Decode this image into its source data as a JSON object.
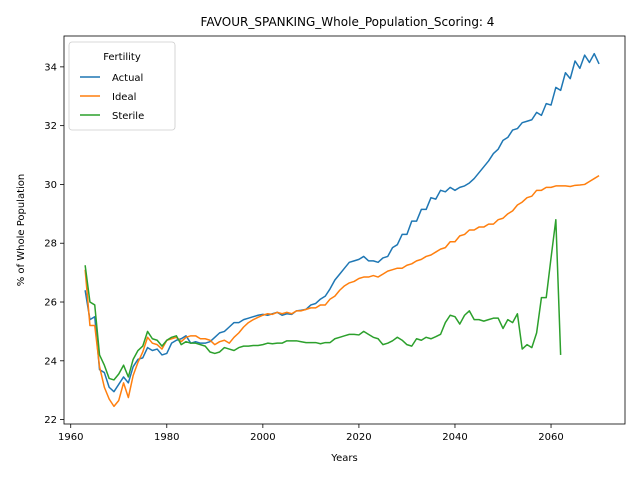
{
  "chart_data": {
    "type": "line",
    "title": "FAVOUR_SPANKING_Whole_Population_Scoring: 4",
    "xlabel": "Years",
    "ylabel": "% of Whole Population",
    "xlim": [
      1958.6,
      2075.4
    ],
    "ylim": [
      21.85,
      35.05
    ],
    "xticks": [
      1960,
      1980,
      2000,
      2020,
      2040,
      2060
    ],
    "yticks": [
      22,
      24,
      26,
      28,
      30,
      32,
      34
    ],
    "grid": false,
    "legend": {
      "title": "Fertility",
      "placement": "top-left"
    },
    "series": [
      {
        "name": "Actual",
        "color": "#1f77b4",
        "x": [
          1963,
          1964,
          1965,
          1966,
          1967,
          1968,
          1969,
          1970,
          1971,
          1972,
          1973,
          1974,
          1975,
          1976,
          1977,
          1978,
          1979,
          1980,
          1981,
          1982,
          1983,
          1984,
          1985,
          1986,
          1987,
          1988,
          1989,
          1990,
          1991,
          1992,
          1993,
          1994,
          1995,
          1996,
          1997,
          1998,
          1999,
          2000,
          2001,
          2002,
          2003,
          2004,
          2005,
          2006,
          2007,
          2008,
          2009,
          2010,
          2011,
          2012,
          2013,
          2014,
          2015,
          2016,
          2017,
          2018,
          2019,
          2020,
          2021,
          2022,
          2023,
          2024,
          2025,
          2026,
          2027,
          2028,
          2029,
          2030,
          2031,
          2032,
          2033,
          2034,
          2035,
          2036,
          2037,
          2038,
          2039,
          2040,
          2041,
          2042,
          2043,
          2044,
          2045,
          2046,
          2047,
          2048,
          2049,
          2050,
          2051,
          2052,
          2053,
          2054,
          2055,
          2056,
          2057,
          2058,
          2059,
          2060,
          2061,
          2062,
          2063,
          2064,
          2065,
          2066,
          2067,
          2068,
          2069,
          2070
        ],
        "values": [
          26.4,
          25.4,
          25.5,
          23.7,
          23.6,
          23.1,
          22.95,
          23.2,
          23.45,
          23.25,
          23.8,
          24.05,
          24.1,
          24.45,
          24.35,
          24.4,
          24.2,
          24.25,
          24.6,
          24.7,
          24.75,
          24.85,
          24.6,
          24.65,
          24.6,
          24.6,
          24.65,
          24.8,
          24.95,
          25.0,
          25.15,
          25.3,
          25.3,
          25.4,
          25.45,
          25.5,
          25.55,
          25.58,
          25.55,
          25.6,
          25.65,
          25.55,
          25.6,
          25.58,
          25.7,
          25.72,
          25.75,
          25.9,
          25.95,
          26.1,
          26.2,
          26.45,
          26.75,
          26.95,
          27.15,
          27.35,
          27.4,
          27.45,
          27.55,
          27.4,
          27.4,
          27.35,
          27.5,
          27.55,
          27.85,
          27.95,
          28.3,
          28.3,
          28.75,
          28.75,
          29.15,
          29.15,
          29.55,
          29.5,
          29.8,
          29.75,
          29.9,
          29.8,
          29.9,
          29.95,
          30.05,
          30.2,
          30.4,
          30.6,
          30.8,
          31.05,
          31.2,
          31.5,
          31.6,
          31.85,
          31.9,
          32.1,
          32.15,
          32.2,
          32.45,
          32.35,
          32.75,
          32.7,
          33.3,
          33.2,
          33.8,
          33.6,
          34.2,
          33.95,
          34.4,
          34.15,
          34.45,
          34.1
        ],
        "null_note": ""
      },
      {
        "name": "Ideal",
        "color": "#ff7f0e",
        "x": [
          1963,
          1964,
          1965,
          1966,
          1967,
          1968,
          1969,
          1970,
          1971,
          1972,
          1973,
          1974,
          1975,
          1976,
          1977,
          1978,
          1979,
          1980,
          1981,
          1982,
          1983,
          1984,
          1985,
          1986,
          1987,
          1988,
          1989,
          1990,
          1991,
          1992,
          1993,
          1994,
          1995,
          1996,
          1997,
          1998,
          1999,
          2000,
          2001,
          2002,
          2003,
          2004,
          2005,
          2006,
          2007,
          2008,
          2009,
          2010,
          2011,
          2012,
          2013,
          2014,
          2015,
          2016,
          2017,
          2018,
          2019,
          2020,
          2021,
          2022,
          2023,
          2024,
          2025,
          2026,
          2027,
          2028,
          2029,
          2030,
          2031,
          2032,
          2033,
          2034,
          2035,
          2036,
          2037,
          2038,
          2039,
          2040,
          2041,
          2042,
          2043,
          2044,
          2045,
          2046,
          2047,
          2048,
          2049,
          2050,
          2051,
          2052,
          2053,
          2054,
          2055,
          2056,
          2057,
          2058,
          2059,
          2060,
          2061,
          2062,
          2063,
          2064,
          2065,
          2066,
          2067,
          2068,
          2069,
          2070
        ],
        "values": [
          27.1,
          25.2,
          25.2,
          23.8,
          23.1,
          22.7,
          22.45,
          22.65,
          23.25,
          22.75,
          23.5,
          23.95,
          24.3,
          24.8,
          24.6,
          24.55,
          24.4,
          24.7,
          24.75,
          24.8,
          24.65,
          24.8,
          24.85,
          24.85,
          24.75,
          24.75,
          24.7,
          24.55,
          24.65,
          24.7,
          24.6,
          24.8,
          24.95,
          25.15,
          25.3,
          25.4,
          25.48,
          25.55,
          25.6,
          25.58,
          25.65,
          25.6,
          25.65,
          25.6,
          25.7,
          25.7,
          25.75,
          25.8,
          25.8,
          25.9,
          25.9,
          26.1,
          26.2,
          26.4,
          26.55,
          26.65,
          26.7,
          26.8,
          26.85,
          26.85,
          26.9,
          26.85,
          26.95,
          27.05,
          27.1,
          27.15,
          27.15,
          27.25,
          27.3,
          27.4,
          27.45,
          27.55,
          27.6,
          27.7,
          27.8,
          27.85,
          28.05,
          28.05,
          28.25,
          28.3,
          28.45,
          28.45,
          28.55,
          28.55,
          28.65,
          28.65,
          28.8,
          28.85,
          29.0,
          29.1,
          29.3,
          29.4,
          29.55,
          29.6,
          29.8,
          29.8,
          29.9,
          29.9,
          29.95,
          29.95,
          29.95,
          29.93,
          29.97,
          29.98,
          30.0,
          30.1,
          30.2,
          30.3
        ]
      },
      {
        "name": "Sterile",
        "color": "#2ca02c",
        "x": [
          1963,
          1964,
          1965,
          1966,
          1967,
          1968,
          1969,
          1970,
          1971,
          1972,
          1973,
          1974,
          1975,
          1976,
          1977,
          1978,
          1979,
          1980,
          1981,
          1982,
          1983,
          1984,
          1985,
          1986,
          1987,
          1988,
          1989,
          1990,
          1991,
          1992,
          1993,
          1994,
          1995,
          1996,
          1997,
          1998,
          1999,
          2000,
          2001,
          2002,
          2003,
          2004,
          2005,
          2006,
          2007,
          2008,
          2009,
          2010,
          2011,
          2012,
          2013,
          2014,
          2015,
          2016,
          2017,
          2018,
          2019,
          2020,
          2021,
          2022,
          2023,
          2024,
          2025,
          2026,
          2027,
          2028,
          2029,
          2030,
          2031,
          2032,
          2033,
          2034,
          2035,
          2036,
          2037,
          2038,
          2039,
          2040,
          2041,
          2042,
          2043,
          2044,
          2045,
          2046,
          2047,
          2048,
          2049,
          2050,
          2051,
          2052,
          2053,
          2054,
          2055,
          2056,
          2057,
          2058,
          2059,
          2060,
          2061,
          2062
        ],
        "values": [
          27.25,
          26.0,
          25.9,
          24.2,
          23.85,
          23.4,
          23.35,
          23.55,
          23.85,
          23.45,
          24.05,
          24.35,
          24.5,
          25.0,
          24.75,
          24.7,
          24.5,
          24.7,
          24.8,
          24.85,
          24.55,
          24.65,
          24.6,
          24.6,
          24.55,
          24.5,
          24.3,
          24.25,
          24.3,
          24.45,
          24.4,
          24.35,
          24.45,
          24.5,
          24.5,
          24.52,
          24.52,
          24.55,
          24.6,
          24.58,
          24.6,
          24.6,
          24.68,
          24.68,
          24.68,
          24.65,
          24.62,
          24.62,
          24.62,
          24.58,
          24.62,
          24.62,
          24.75,
          24.8,
          24.85,
          24.9,
          24.9,
          24.88,
          25.0,
          24.9,
          24.8,
          24.75,
          24.55,
          24.6,
          24.68,
          24.8,
          24.7,
          24.55,
          24.5,
          24.75,
          24.7,
          24.8,
          24.75,
          24.82,
          24.9,
          25.3,
          25.55,
          25.5,
          25.25,
          25.55,
          25.7,
          25.4,
          25.4,
          25.35,
          25.4,
          25.45,
          25.45,
          25.1,
          25.4,
          25.3,
          25.6,
          24.4,
          24.55,
          24.45,
          24.95,
          26.15,
          26.15,
          27.5,
          28.8,
          24.2
        ]
      }
    ]
  }
}
